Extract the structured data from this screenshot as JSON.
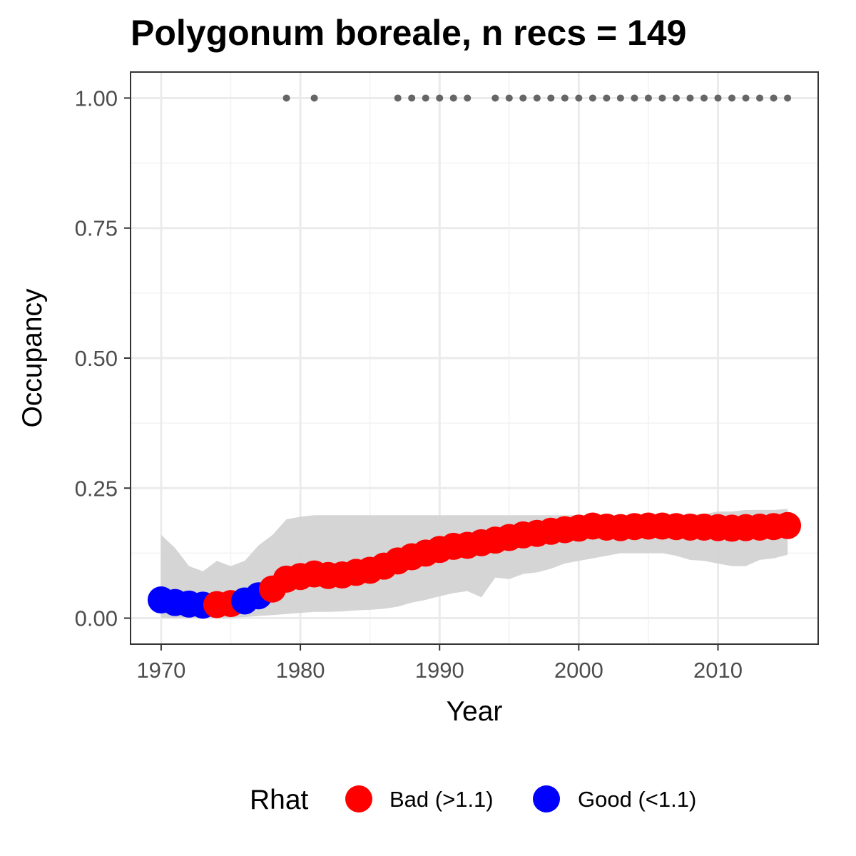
{
  "chart_data": {
    "type": "scatter",
    "title": "Polygonum boreale, n recs = 149",
    "xlabel": "Year",
    "ylabel": "Occupancy",
    "xlim": [
      1967.8,
      2017.2
    ],
    "ylim": [
      -0.05,
      1.05
    ],
    "x_ticks": [
      1970,
      1980,
      1990,
      2000,
      2010
    ],
    "x_tick_labels": [
      "1970",
      "1980",
      "1990",
      "2000",
      "2010"
    ],
    "y_ticks": [
      0,
      0.25,
      0.5,
      0.75,
      1.0
    ],
    "y_tick_labels": [
      "0.00",
      "0.25",
      "0.50",
      "0.75",
      "1.00"
    ],
    "grid": true,
    "legend": {
      "title": "Rhat",
      "position": "bottom",
      "entries": [
        {
          "label": "Bad (>1.1)",
          "color": "#ff0000"
        },
        {
          "label": "Good (<1.1)",
          "color": "#0000ff"
        }
      ]
    },
    "colors": {
      "bad": "#ff0000",
      "good": "#0000ff",
      "ribbon": "#d3d3d3",
      "records": "#666666"
    },
    "series": [
      {
        "name": "Rhat",
        "type": "scatter",
        "x": [
          1970,
          1971,
          1972,
          1973,
          1974,
          1975,
          1976,
          1977,
          1978,
          1979,
          1980,
          1981,
          1982,
          1983,
          1984,
          1985,
          1986,
          1987,
          1988,
          1989,
          1990,
          1991,
          1992,
          1993,
          1994,
          1995,
          1996,
          1997,
          1998,
          1999,
          2000,
          2001,
          2002,
          2003,
          2004,
          2005,
          2006,
          2007,
          2008,
          2009,
          2010,
          2011,
          2012,
          2013,
          2014,
          2015
        ],
        "y": [
          0.035,
          0.03,
          0.027,
          0.025,
          0.026,
          0.028,
          0.033,
          0.043,
          0.056,
          0.075,
          0.08,
          0.085,
          0.082,
          0.083,
          0.088,
          0.092,
          0.1,
          0.11,
          0.118,
          0.125,
          0.132,
          0.138,
          0.14,
          0.145,
          0.15,
          0.155,
          0.16,
          0.163,
          0.167,
          0.17,
          0.173,
          0.177,
          0.175,
          0.174,
          0.176,
          0.177,
          0.177,
          0.176,
          0.175,
          0.175,
          0.174,
          0.173,
          0.174,
          0.175,
          0.176,
          0.178
        ],
        "rhat": [
          "Good",
          "Good",
          "Good",
          "Good",
          "Bad",
          "Bad",
          "Good",
          "Good",
          "Bad",
          "Bad",
          "Bad",
          "Bad",
          "Bad",
          "Bad",
          "Bad",
          "Bad",
          "Bad",
          "Bad",
          "Bad",
          "Bad",
          "Bad",
          "Bad",
          "Bad",
          "Bad",
          "Bad",
          "Bad",
          "Bad",
          "Bad",
          "Bad",
          "Bad",
          "Bad",
          "Bad",
          "Bad",
          "Bad",
          "Bad",
          "Bad",
          "Bad",
          "Bad",
          "Bad",
          "Bad",
          "Bad",
          "Bad",
          "Bad",
          "Bad",
          "Bad",
          "Bad"
        ]
      },
      {
        "name": "credible interval",
        "type": "area",
        "x": [
          1970,
          1971,
          1972,
          1973,
          1974,
          1975,
          1976,
          1977,
          1978,
          1979,
          1980,
          1981,
          1982,
          1983,
          1984,
          1985,
          1986,
          1987,
          1988,
          1989,
          1990,
          1991,
          1992,
          1993,
          1994,
          1995,
          1996,
          1997,
          1998,
          1999,
          2000,
          2001,
          2002,
          2003,
          2004,
          2005,
          2006,
          2007,
          2008,
          2009,
          2010,
          2011,
          2012,
          2013,
          2014,
          2015
        ],
        "lower": [
          0.0,
          0.0,
          0.0,
          0.0,
          0.0,
          0.0,
          0.002,
          0.004,
          0.006,
          0.008,
          0.01,
          0.012,
          0.012,
          0.013,
          0.015,
          0.016,
          0.018,
          0.022,
          0.03,
          0.035,
          0.042,
          0.048,
          0.052,
          0.04,
          0.078,
          0.075,
          0.085,
          0.088,
          0.095,
          0.105,
          0.11,
          0.115,
          0.12,
          0.125,
          0.125,
          0.125,
          0.125,
          0.12,
          0.112,
          0.11,
          0.105,
          0.1,
          0.1,
          0.112,
          0.115,
          0.122
        ],
        "upper": [
          0.16,
          0.135,
          0.1,
          0.09,
          0.11,
          0.1,
          0.11,
          0.14,
          0.16,
          0.19,
          0.195,
          0.198,
          0.198,
          0.198,
          0.198,
          0.198,
          0.198,
          0.198,
          0.198,
          0.198,
          0.198,
          0.198,
          0.198,
          0.198,
          0.198,
          0.198,
          0.198,
          0.198,
          0.198,
          0.198,
          0.198,
          0.198,
          0.198,
          0.198,
          0.198,
          0.198,
          0.198,
          0.198,
          0.2,
          0.2,
          0.205,
          0.205,
          0.208,
          0.208,
          0.208,
          0.21
        ]
      },
      {
        "name": "records",
        "type": "scatter",
        "x": [
          1979,
          1981,
          1987,
          1988,
          1989,
          1990,
          1991,
          1992,
          1994,
          1995,
          1996,
          1997,
          1998,
          1999,
          2000,
          2001,
          2002,
          2003,
          2004,
          2005,
          2006,
          2007,
          2008,
          2009,
          2010,
          2011,
          2012,
          2013,
          2014,
          2015
        ],
        "y": [
          1,
          1,
          1,
          1,
          1,
          1,
          1,
          1,
          1,
          1,
          1,
          1,
          1,
          1,
          1,
          1,
          1,
          1,
          1,
          1,
          1,
          1,
          1,
          1,
          1,
          1,
          1,
          1,
          1,
          1
        ]
      }
    ]
  }
}
